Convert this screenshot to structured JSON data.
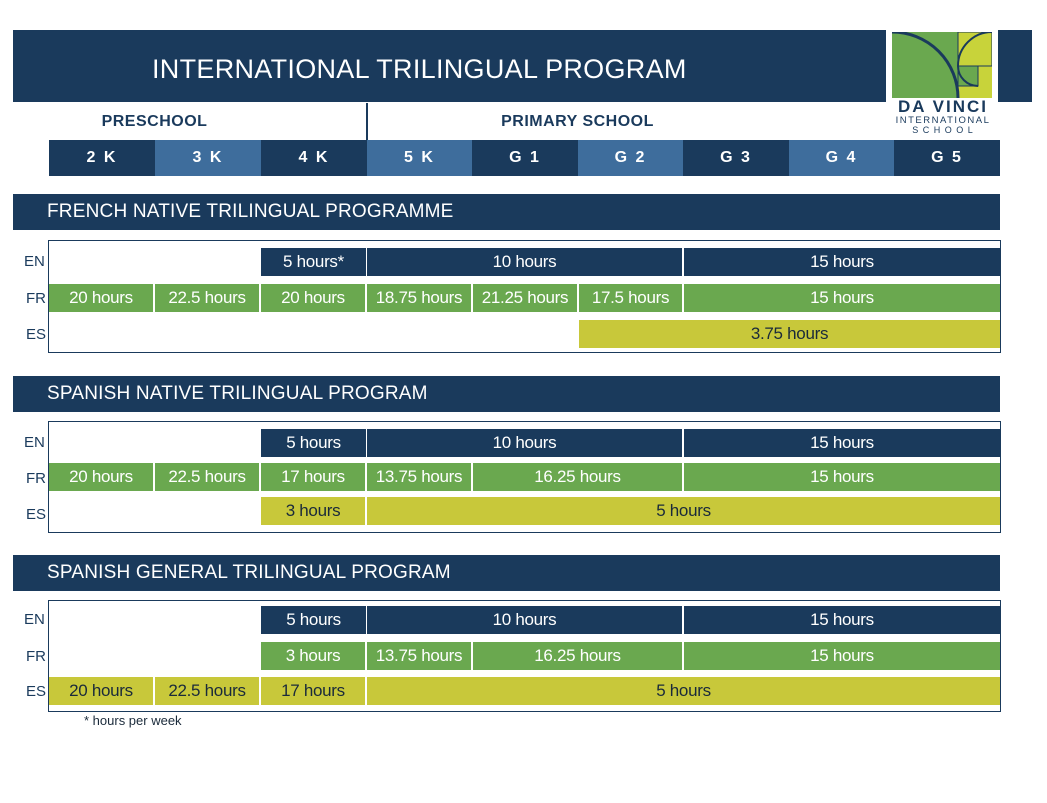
{
  "header": {
    "title": "INTERNATIONAL TRILINGUAL PROGRAM",
    "logo_line1": "DA VINCI",
    "logo_line2": "INTERNATIONAL",
    "logo_line3": "S C H O O L"
  },
  "levels": {
    "preschool": "PRESCHOOL",
    "primary": "PRIMARY SCHOOL"
  },
  "grades": [
    "2 K",
    "3 K",
    "4 K",
    "5 K",
    "G 1",
    "G 2",
    "G 3",
    "G 4",
    "G 5"
  ],
  "lang_labels": {
    "en": "EN",
    "fr": "FR",
    "es": "ES"
  },
  "sections": [
    {
      "title": "FRENCH NATIVE TRILINGUAL PROGRAMME",
      "en": [
        "5 hours*",
        "10 hours",
        "15 hours"
      ],
      "fr": [
        "20 hours",
        "22.5 hours",
        "20 hours",
        "18.75 hours",
        "21.25 hours",
        "17.5 hours",
        "15 hours"
      ],
      "es": [
        "3.75 hours"
      ]
    },
    {
      "title": "SPANISH NATIVE TRILINGUAL PROGRAM",
      "en": [
        "5 hours",
        "10 hours",
        "15 hours"
      ],
      "fr": [
        "20 hours",
        "22.5 hours",
        "17 hours",
        "13.75 hours",
        "16.25 hours",
        "15 hours"
      ],
      "es": [
        "3 hours",
        "5 hours"
      ]
    },
    {
      "title": "SPANISH GENERAL TRILINGUAL PROGRAM",
      "en": [
        "5 hours",
        "10 hours",
        "15 hours"
      ],
      "fr": [
        "3 hours",
        "13.75 hours",
        "16.25 hours",
        "15 hours"
      ],
      "es": [
        "20 hours",
        "22.5 hours",
        "17 hours",
        "5 hours"
      ]
    }
  ],
  "footnote": "* hours per week",
  "colors": {
    "navy": "#1a3a5c",
    "blue": "#3e6d9c",
    "green": "#6aa84f",
    "yellow": "#c8c83a"
  }
}
